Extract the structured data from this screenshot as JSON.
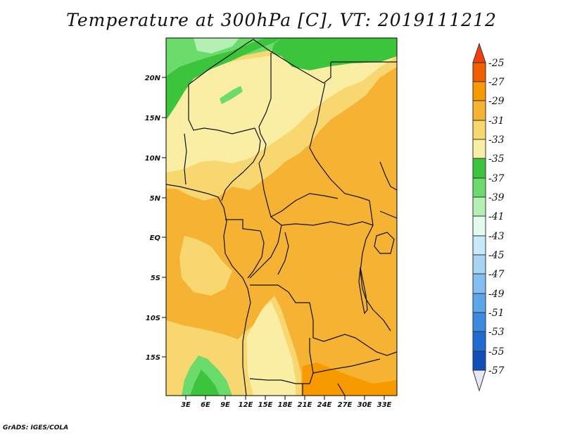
{
  "title": "Temperature at 300hPa [C], VT: 2019111212",
  "credit": "GrADS: IGES/COLA",
  "lat_labels": [
    "20N",
    "15N",
    "10N",
    "5N",
    "EQ",
    "5S",
    "10S",
    "15S"
  ],
  "lon_labels": [
    "3E",
    "6E",
    "9E",
    "12E",
    "15E",
    "18E",
    "21E",
    "24E",
    "27E",
    "30E",
    "33E"
  ],
  "colorbar": {
    "levels": [
      "-25",
      "-27",
      "-29",
      "-31",
      "-33",
      "-35",
      "-37",
      "-39",
      "-41",
      "-43",
      "-45",
      "-47",
      "-49",
      "-51",
      "-53",
      "-55",
      "-57"
    ],
    "colors": [
      "#f15f00",
      "#f79a00",
      "#f5b233",
      "#f8d770",
      "#faeea5",
      "#3dc43d",
      "#6bdc6b",
      "#b4f0b4",
      "#e2fbee",
      "#c8e8fb",
      "#a7d3f5",
      "#82bff0",
      "#5ca6ea",
      "#3b8be0",
      "#1f6cd0",
      "#0f4fb8",
      "#0a1f7a",
      "#ffffff"
    ],
    "top_color": "#f04010",
    "bottom_color": "#e8e8f8"
  },
  "colors": {
    "background": "#f5b233",
    "light_orange": "#f8d770",
    "pale_yellow": "#faeea5",
    "green": "#3dc43d",
    "light_green": "#6bdc6b",
    "pale_green": "#b4f0b4",
    "darker_orange": "#f79a00"
  }
}
